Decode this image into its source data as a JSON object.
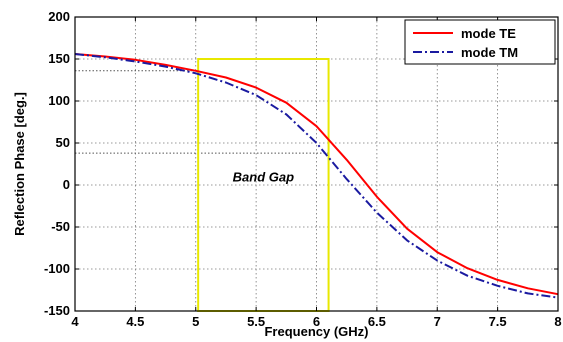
{
  "chart_data": {
    "type": "line",
    "xlabel": "Frequency (GHz)",
    "ylabel": "Reflection Phase [deg.]",
    "xlim": [
      4,
      8
    ],
    "ylim": [
      -150,
      200
    ],
    "xticks": [
      4,
      4.5,
      5,
      5.5,
      6,
      6.5,
      7,
      7.5,
      8
    ],
    "xtick_labels": [
      "4",
      "4.5",
      "5",
      "5.5",
      "6",
      "6.5",
      "7",
      "7.5",
      "8"
    ],
    "yticks": [
      -150,
      -100,
      -50,
      0,
      50,
      100,
      150,
      200
    ],
    "ytick_labels": [
      "-150",
      "-100",
      "-50",
      "0",
      "50",
      "100",
      "150",
      "200"
    ],
    "grid": true,
    "legend_position": "top-right",
    "series": [
      {
        "name": "mode TE",
        "color": "#ff0000",
        "style": "solid",
        "x": [
          4.0,
          4.25,
          4.5,
          4.75,
          5.0,
          5.25,
          5.5,
          5.75,
          6.0,
          6.25,
          6.5,
          6.75,
          7.0,
          7.25,
          7.5,
          7.75,
          8.0
        ],
        "y": [
          156,
          153,
          149,
          143,
          136,
          128,
          116,
          98,
          70,
          30,
          -14,
          -52,
          -80,
          -99,
          -113,
          -123,
          -130
        ]
      },
      {
        "name": "mode TM",
        "color": "#1a1aa0",
        "style": "dashdot",
        "x": [
          4.0,
          4.25,
          4.5,
          4.75,
          5.0,
          5.25,
          5.5,
          5.75,
          6.0,
          6.25,
          6.5,
          6.75,
          7.0,
          7.25,
          7.5,
          7.75,
          8.0
        ],
        "y": [
          156,
          152,
          147,
          141,
          133,
          122,
          107,
          84,
          50,
          7,
          -33,
          -66,
          -90,
          -108,
          -120,
          -129,
          -134
        ]
      }
    ],
    "reference_lines": [
      {
        "axis": "y",
        "value": 136,
        "x_to": 5.0
      },
      {
        "axis": "y",
        "value": 38,
        "x_to": 6.1
      }
    ],
    "band_gap": {
      "label": "Band Gap",
      "x_range": [
        5.02,
        6.1
      ],
      "y_range": [
        -150,
        150
      ],
      "color": "#e8e800"
    }
  }
}
